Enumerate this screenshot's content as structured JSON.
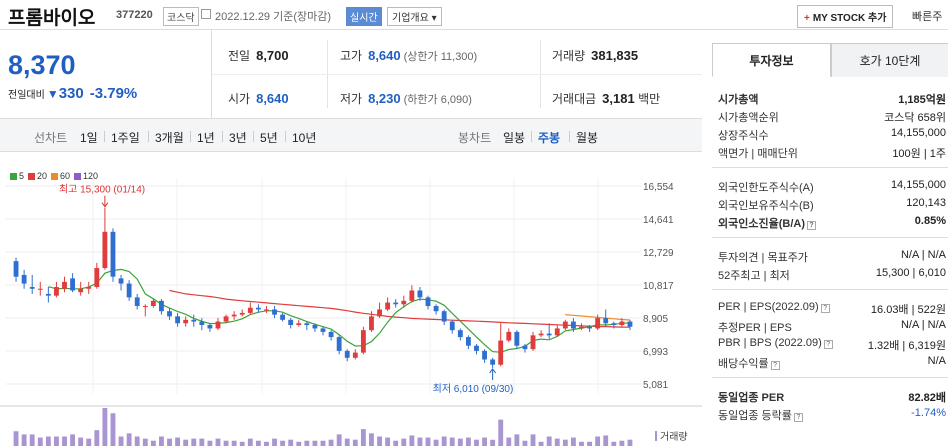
{
  "header": {
    "name": "프롬바이오",
    "code": "377220",
    "market": "코스닥",
    "date": "2022.12.29  기준(장마감)",
    "realtime": "실시간",
    "company_info": "기업개요 ▾",
    "mystock": "MY STOCK 추가",
    "mystock_plus": "+",
    "quick": "빠른주"
  },
  "price": {
    "current": "8,370",
    "change_label": "전일대비",
    "change_arrow": "▼",
    "change": "330",
    "change_pct": "-3.79%"
  },
  "stats": {
    "prev_close_label": "전일",
    "prev_close": "8,700",
    "high_label": "고가",
    "high": "8,640",
    "upper_limit": "(상한가 11,300)",
    "volume_label": "거래량",
    "volume": "381,835",
    "open_label": "시가",
    "open": "8,640",
    "low_label": "저가",
    "low": "8,230",
    "lower_limit": "(하한가 6,090)",
    "amount_label": "거래대금",
    "amount": "3,181",
    "amount_unit": "백만"
  },
  "toolbar": {
    "line_label": "선차트",
    "line_items": [
      "1일",
      "1주일",
      "3개월",
      "1년",
      "3년",
      "5년",
      "10년"
    ],
    "candle_label": "봉차트",
    "candle_items": [
      "일봉",
      "주봉",
      "월봉"
    ],
    "selected_candle": "주봉"
  },
  "chart_data": {
    "type": "candlestick",
    "legend": [
      {
        "name": "5",
        "color": "#3aa53a"
      },
      {
        "name": "20",
        "color": "#e03c3c"
      },
      {
        "name": "60",
        "color": "#f08a24"
      },
      {
        "name": "120",
        "color": "#8e5bc9"
      }
    ],
    "y_ticks": [
      "16,554",
      "14,641",
      "12,729",
      "10,817",
      "8,905",
      "6,993",
      "5,081"
    ],
    "ylim": [
      5081,
      16554
    ],
    "high_annotation": "최고 15,300 (01/14)",
    "low_annotation": "최저 6,010 (09/30)",
    "volume_label": "거래량",
    "colors": {
      "up": "#e03c3c",
      "down": "#2f6fd0",
      "ma5": "#3aa53a",
      "ma20": "#e03c3c",
      "ma60": "#f08a24",
      "volume": "#a995d2"
    },
    "candles": [
      [
        12200,
        11300,
        12400,
        11000
      ],
      [
        11400,
        10900,
        11700,
        10600
      ],
      [
        10700,
        10600,
        11400,
        10300
      ],
      [
        10600,
        10600,
        11000,
        10200
      ],
      [
        10300,
        10200,
        10700,
        9800
      ],
      [
        10200,
        10700,
        11000,
        10100
      ],
      [
        10600,
        11000,
        11300,
        10400
      ],
      [
        11200,
        10500,
        11500,
        10400
      ],
      [
        10400,
        10600,
        11000,
        10200
      ],
      [
        10600,
        10700,
        11000,
        10300
      ],
      [
        10700,
        11800,
        12100,
        10600
      ],
      [
        11800,
        13900,
        15300,
        11700
      ],
      [
        13900,
        11300,
        14100,
        11000
      ],
      [
        11200,
        10900,
        11400,
        10500
      ],
      [
        10900,
        10100,
        11100,
        9900
      ],
      [
        10100,
        9600,
        10300,
        9400
      ],
      [
        9600,
        9600,
        9700,
        9000
      ],
      [
        9600,
        9900,
        10000,
        9500
      ],
      [
        9900,
        9300,
        10000,
        9100
      ],
      [
        9300,
        9000,
        9500,
        8800
      ],
      [
        9000,
        8600,
        9200,
        8400
      ],
      [
        8600,
        8800,
        9000,
        8400
      ],
      [
        8800,
        8700,
        9100,
        8400
      ],
      [
        8700,
        8500,
        8900,
        8200
      ],
      [
        8500,
        8300,
        8600,
        8100
      ],
      [
        8300,
        8700,
        8900,
        8200
      ],
      [
        8700,
        9000,
        9100,
        8600
      ],
      [
        9000,
        9100,
        9300,
        8800
      ],
      [
        9100,
        9200,
        9400,
        9000
      ],
      [
        9200,
        9500,
        9800,
        9100
      ],
      [
        9500,
        9400,
        9700,
        9200
      ],
      [
        9400,
        9400,
        9600,
        9200
      ],
      [
        9400,
        9100,
        9600,
        8900
      ],
      [
        9100,
        8800,
        9200,
        8700
      ],
      [
        8800,
        8500,
        8900,
        8300
      ],
      [
        8500,
        8600,
        8800,
        8400
      ],
      [
        8600,
        8500,
        8700,
        8200
      ],
      [
        8500,
        8300,
        8600,
        8100
      ],
      [
        8300,
        8100,
        8400,
        7900
      ],
      [
        8100,
        7800,
        8200,
        7600
      ],
      [
        7800,
        7000,
        7900,
        6800
      ],
      [
        7000,
        6600,
        7100,
        6400
      ],
      [
        6600,
        6900,
        7100,
        6500
      ],
      [
        6900,
        8200,
        8400,
        6800
      ],
      [
        8200,
        9000,
        9300,
        8100
      ],
      [
        9000,
        9400,
        9800,
        8900
      ],
      [
        9400,
        9800,
        10100,
        9300
      ],
      [
        9800,
        9700,
        10000,
        9500
      ],
      [
        9700,
        9900,
        10200,
        9500
      ],
      [
        9900,
        10500,
        10800,
        9800
      ],
      [
        10500,
        10100,
        10700,
        9900
      ],
      [
        10100,
        9600,
        10200,
        9400
      ],
      [
        9600,
        9300,
        9700,
        9100
      ],
      [
        9300,
        8700,
        9400,
        8500
      ],
      [
        8700,
        8200,
        8800,
        8000
      ],
      [
        8200,
        7800,
        8300,
        7600
      ],
      [
        7800,
        7300,
        7900,
        7100
      ],
      [
        7300,
        7000,
        7400,
        6800
      ],
      [
        7000,
        6500,
        7100,
        6300
      ],
      [
        6500,
        6200,
        6600,
        6010
      ],
      [
        6200,
        7600,
        8600,
        6100
      ],
      [
        7600,
        8100,
        8300,
        7500
      ],
      [
        8100,
        7300,
        8200,
        7100
      ],
      [
        7300,
        7100,
        7400,
        6900
      ],
      [
        7100,
        7900,
        8100,
        7000
      ],
      [
        7900,
        8000,
        8200,
        7800
      ],
      [
        8000,
        7900,
        8600,
        7700
      ],
      [
        7900,
        8300,
        8500,
        7800
      ],
      [
        8300,
        8700,
        8800,
        8200
      ],
      [
        8700,
        8300,
        8900,
        8100
      ],
      [
        8300,
        8400,
        8600,
        8200
      ],
      [
        8400,
        8300,
        8500,
        8100
      ],
      [
        8300,
        8900,
        9100,
        8200
      ],
      [
        8900,
        8600,
        9400,
        8400
      ],
      [
        8600,
        8500,
        8700,
        8300
      ],
      [
        8500,
        8700,
        8900,
        8400
      ],
      [
        8700,
        8400,
        8800,
        8200
      ]
    ],
    "ma20": [
      null,
      null,
      null,
      null,
      null,
      null,
      null,
      null,
      null,
      null,
      null,
      null,
      null,
      null,
      null,
      null,
      null,
      null,
      null,
      10500,
      10400,
      10300,
      10250,
      10200,
      10150,
      10080,
      10000,
      9950,
      9900,
      9860,
      9820,
      9780,
      9740,
      9700,
      9660,
      9620,
      9580,
      9540,
      9500,
      9460,
      9400,
      9330,
      9250,
      9180,
      9120,
      9060,
      9000,
      8960,
      8920,
      8880,
      8860,
      8840,
      8820,
      8800,
      8780,
      8760,
      8740,
      8720,
      8700,
      8680,
      8650,
      8630,
      8610,
      8590,
      8570,
      8550,
      8530,
      8510,
      8490,
      8470,
      8450,
      8430,
      8410,
      8400,
      8390,
      8380,
      8370
    ],
    "ma60": [
      null,
      null,
      null,
      null,
      null,
      null,
      null,
      null,
      null,
      null,
      null,
      null,
      null,
      null,
      null,
      null,
      null,
      null,
      null,
      null,
      null,
      null,
      null,
      null,
      null,
      null,
      null,
      null,
      null,
      null,
      null,
      null,
      null,
      null,
      null,
      null,
      null,
      null,
      null,
      null,
      null,
      null,
      null,
      null,
      null,
      null,
      null,
      null,
      null,
      null,
      null,
      null,
      null,
      null,
      null,
      null,
      null,
      null,
      null,
      null,
      null,
      null,
      null,
      null,
      null,
      null,
      null,
      null,
      9100,
      9060,
      9020,
      8980,
      8940,
      8900,
      8860,
      8820,
      8790
    ]
  },
  "right": {
    "tab_invest": "투자정보",
    "tab_quote": "호가 10단계",
    "rows": [
      {
        "l": "시가총액",
        "r": "1,185억원"
      },
      {
        "l": "시가총액순위",
        "r": "코스닥 658위"
      },
      {
        "l": "상장주식수",
        "r": "14,155,000"
      },
      {
        "l": "액면가 | 매매단위",
        "r": "100원 | 1주"
      },
      {
        "l": "외국인한도주식수(A)",
        "r": "14,155,000"
      },
      {
        "l": "외국인보유주식수(B)",
        "r": "120,143"
      },
      {
        "l": "외국인소진율(B/A)",
        "r": "0.85%"
      },
      {
        "l": "투자의견 | 목표주가",
        "r": "N/A | N/A"
      },
      {
        "l": "52주최고 | 최저",
        "r": "15,300 | 6,010"
      },
      {
        "l": "PER | EPS(2022.09)",
        "r": "16.03배 | 522원"
      },
      {
        "l": "추정PER | EPS",
        "r": "N/A | N/A"
      },
      {
        "l": "PBR | BPS (2022.09)",
        "r": "1.32배 | 6,319원"
      },
      {
        "l": "배당수익률",
        "r": "N/A"
      },
      {
        "l": "동일업종 PER",
        "r": "82.82배"
      },
      {
        "l": "동일업종 등락률",
        "r": "-1.74%"
      }
    ]
  }
}
